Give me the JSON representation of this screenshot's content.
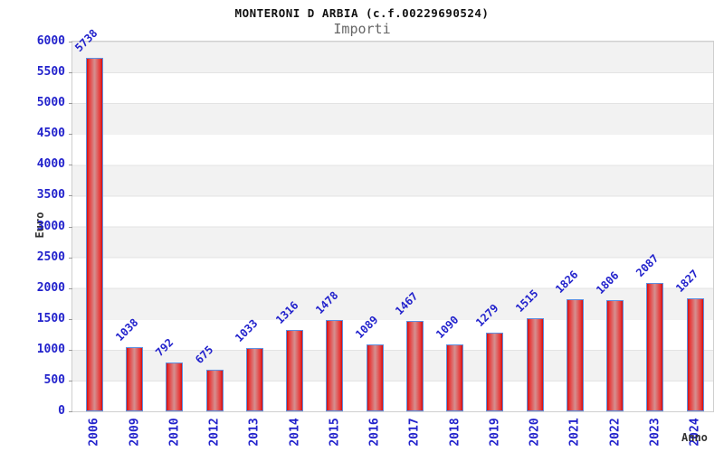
{
  "chart_data": {
    "type": "bar",
    "title": "MONTERONI D ARBIA (c.f.00229690524)",
    "subtitle": "Importi",
    "xlabel": "Anno",
    "ylabel": "Euro",
    "categories": [
      "2006",
      "2009",
      "2010",
      "2012",
      "2013",
      "2014",
      "2015",
      "2016",
      "2017",
      "2018",
      "2019",
      "2020",
      "2021",
      "2022",
      "2023",
      "2024"
    ],
    "values": [
      5738,
      1038,
      792,
      675,
      1033,
      1316,
      1478,
      1089,
      1467,
      1090,
      1279,
      1515,
      1826,
      1806,
      2087,
      1827
    ],
    "ylim": [
      0,
      6000
    ],
    "ytick_step": 500,
    "grid": "horizontal-bands",
    "legend_position": "none",
    "bar_label_rotation_deg": -45,
    "x_tick_rotation_deg": -90,
    "colors": {
      "tick_text": "#2222cc",
      "bar_border": "#5e8fe0",
      "bar_edge": "#d01010",
      "bar_mid": "#e83838",
      "bar_center": "#d59090",
      "band_gray": "#f2f2f2",
      "grid_line": "#e3e3e3",
      "title_text": "#111111",
      "subtitle_text": "#666666",
      "axis_title_text": "#333333"
    }
  }
}
